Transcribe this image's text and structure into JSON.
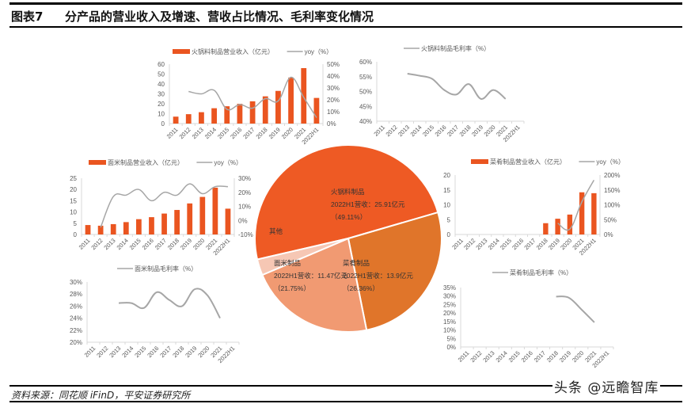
{
  "header": {
    "figure_label": "图表7",
    "title": "分产品的营业收入及增速、营收占比情况、毛利率变化情况"
  },
  "footer": {
    "source": "资料来源：同花顺 iFinD，平安证券研究所",
    "watermark": "头条 @远瞻智库"
  },
  "colors": {
    "bar": "#ea5520",
    "line": "#a6a6a6",
    "axis_text": "#595959",
    "axis_line": "#d9d9d9",
    "pie_hotpot": "#ee5a24",
    "pie_dishes": "#e0752a",
    "pie_noodle": "#f19a72",
    "pie_other": "#f6c7b4"
  },
  "chart_data": [
    {
      "id": "hotpot_revenue",
      "type": "bar+line",
      "legend": [
        "火锅料制品营业收入（亿元）",
        "yoy（%）"
      ],
      "categories": [
        "2011",
        "2012",
        "2013",
        "2014",
        "2015",
        "2016",
        "2017",
        "2018",
        "2019",
        "2020",
        "2021",
        "2022H1"
      ],
      "series": [
        {
          "name": "火锅料制品营业收入（亿元）",
          "axis": "left",
          "values": [
            7,
            9.5,
            11.5,
            15.5,
            17.5,
            20,
            22.5,
            27.5,
            33,
            46.5,
            56,
            25.9
          ]
        },
        {
          "name": "yoy（%）",
          "axis": "right",
          "values": [
            null,
            27,
            25,
            28,
            12,
            16,
            13,
            21,
            19,
            39,
            22,
            5
          ]
        }
      ],
      "yleft": {
        "min": 0,
        "max": 60,
        "ticks": [
          "0",
          "10",
          "20",
          "30",
          "40",
          "50",
          "60"
        ]
      },
      "yright": {
        "min": 0,
        "max": 50,
        "ticks": [
          "0%",
          "10%",
          "20%",
          "30%",
          "40%",
          "50%"
        ]
      }
    },
    {
      "id": "hotpot_margin",
      "type": "line",
      "legend": [
        "火锅料制品毛利率（%）"
      ],
      "categories": [
        "2011",
        "2012",
        "2013",
        "2014",
        "2015",
        "2016",
        "2017",
        "2018",
        "2019",
        "2020",
        "2021",
        "2022H1"
      ],
      "series": [
        {
          "name": "火锅料制品毛利率（%）",
          "values": [
            null,
            null,
            56,
            55.3,
            54.3,
            50.5,
            49,
            52.5,
            47.5,
            50.5,
            47.5,
            null
          ]
        }
      ],
      "y": {
        "min": 40,
        "max": 60,
        "ticks": [
          "40%",
          "45%",
          "50%",
          "55%",
          "60%"
        ]
      }
    },
    {
      "id": "noodle_revenue",
      "type": "bar+line",
      "legend": [
        "面米制品营业收入（亿元）",
        "yoy（%）"
      ],
      "categories": [
        "2011",
        "2012",
        "2013",
        "2014",
        "2015",
        "2016",
        "2017",
        "2018",
        "2019",
        "2020",
        "2021",
        "2022H1"
      ],
      "series": [
        {
          "name": "面米制品营业收入（亿元）",
          "axis": "left",
          "values": [
            4.2,
            3.9,
            4.6,
            5.5,
            6.8,
            7.7,
            9.3,
            10.9,
            13.8,
            16.7,
            20.8,
            11.47
          ]
        },
        {
          "name": "yoy（%）",
          "axis": "right",
          "values": [
            null,
            -5,
            17,
            18,
            22,
            14,
            20,
            18,
            26,
            19,
            24,
            24
          ]
        }
      ],
      "yleft": {
        "min": 0,
        "max": 25,
        "ticks": [
          "0",
          "5",
          "10",
          "15",
          "20",
          "25"
        ]
      },
      "yright": {
        "min": -10,
        "max": 30,
        "ticks": [
          "-10%",
          "0%",
          "10%",
          "20%",
          "30%"
        ]
      }
    },
    {
      "id": "noodle_margin",
      "type": "line",
      "legend": [
        "面米制品毛利率（%）"
      ],
      "categories": [
        "2011",
        "2012",
        "2013",
        "2014",
        "2015",
        "2016",
        "2017",
        "2018",
        "2019",
        "2020",
        "2021",
        "2022H1"
      ],
      "series": [
        {
          "name": "面米制品毛利率（%）",
          "values": [
            null,
            null,
            26.5,
            26.5,
            25.7,
            28.3,
            27,
            26,
            28.8,
            27.8,
            24,
            null
          ]
        }
      ],
      "y": {
        "min": 20,
        "max": 30,
        "ticks": [
          "20%",
          "22%",
          "24%",
          "26%",
          "28%",
          "30%"
        ]
      }
    },
    {
      "id": "dishes_revenue",
      "type": "bar+line",
      "legend": [
        "菜肴制品营业收入（亿元）",
        "yoy（%）"
      ],
      "categories": [
        "2011",
        "2012",
        "2013",
        "2014",
        "2015",
        "2016",
        "2017",
        "2018",
        "2019",
        "2020",
        "2021",
        "2022H1"
      ],
      "series": [
        {
          "name": "菜肴制品营业收入（亿元）",
          "axis": "left",
          "values": [
            null,
            null,
            null,
            null,
            null,
            null,
            null,
            3.8,
            5.3,
            6.7,
            14.2,
            13.9
          ]
        },
        {
          "name": "yoy（%）",
          "axis": "right",
          "values": [
            null,
            null,
            null,
            null,
            null,
            null,
            null,
            null,
            38,
            18,
            110,
            183
          ]
        }
      ],
      "yleft": {
        "min": 0,
        "max": 20,
        "ticks": [
          "0",
          "5",
          "10",
          "15",
          "20"
        ]
      },
      "yright": {
        "min": 0,
        "max": 200,
        "ticks": [
          "0%",
          "50%",
          "100%",
          "150%",
          "200%"
        ]
      }
    },
    {
      "id": "dishes_margin",
      "type": "line",
      "legend": [
        "菜肴制品毛利率（%）"
      ],
      "categories": [
        "2011",
        "2012",
        "2013",
        "2014",
        "2015",
        "2016",
        "2017",
        "2018",
        "2019",
        "2020",
        "2021",
        "2022H1"
      ],
      "series": [
        {
          "name": "菜肴制品毛利率（%）",
          "values": [
            null,
            null,
            null,
            null,
            null,
            null,
            null,
            29.7,
            29,
            22,
            14.5,
            null
          ]
        }
      ],
      "y": {
        "min": 0,
        "max": 35,
        "ticks": [
          "0%",
          "5%",
          "10%",
          "15%",
          "20%",
          "25%",
          "30%",
          "35%"
        ]
      }
    },
    {
      "id": "revenue_share_2022H1",
      "type": "pie",
      "slices": [
        {
          "name": "火锅料制品",
          "detail": "2022H1营收：25.91亿元",
          "pct_label": "（49.11%）",
          "value": 49.11
        },
        {
          "name": "菜肴制品",
          "detail": "2022H1营收：13.9亿元",
          "pct_label": "（26.36%）",
          "value": 26.36
        },
        {
          "name": "面米制品",
          "detail": "2022H1营收：11.47亿元",
          "pct_label": "（21.75%）",
          "value": 21.75
        },
        {
          "name": "其他",
          "detail": "",
          "pct_label": "",
          "value": 2.78
        }
      ]
    }
  ]
}
